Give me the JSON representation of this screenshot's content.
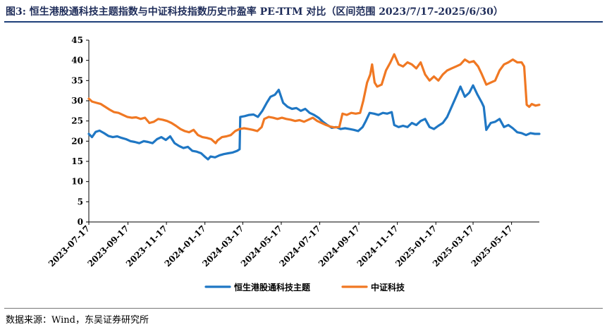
{
  "figure": {
    "title": "图3:  恒生港股通科技主题指数与中证科技指数历史市盈率 PE-TTM 对比（区间范围 2023/7/17-2025/6/30）",
    "source": "数据来源：Wind，东吴证券研究所"
  },
  "chart_data": {
    "type": "line",
    "title": "",
    "xlabel": "",
    "ylabel": "",
    "ylim": [
      0,
      45
    ],
    "yticks": [
      "0",
      "5",
      "10",
      "15",
      "20",
      "25",
      "30",
      "35",
      "40",
      "45"
    ],
    "xlim": [
      "2023-07-17",
      "2025-06-30"
    ],
    "xticks": [
      "2023-07-17",
      "2023-09-17",
      "2023-11-17",
      "2024-01-17",
      "2024-03-17",
      "2024-05-17",
      "2024-07-17",
      "2024-09-17",
      "2024-11-17",
      "2025-01-17",
      "2025-03-17",
      "2025-05-17"
    ],
    "grid": false,
    "legend_position": "bottom",
    "series": [
      {
        "name": "恒生港股通科技主题",
        "color": "#1f77c4",
        "points": [
          [
            "2023-07-17",
            21.8
          ],
          [
            "2023-07-22",
            21.0
          ],
          [
            "2023-07-28",
            22.3
          ],
          [
            "2023-08-03",
            22.6
          ],
          [
            "2023-08-10",
            22.0
          ],
          [
            "2023-08-17",
            21.3
          ],
          [
            "2023-08-24",
            21.0
          ],
          [
            "2023-08-31",
            21.2
          ],
          [
            "2023-09-07",
            20.8
          ],
          [
            "2023-09-14",
            20.5
          ],
          [
            "2023-09-21",
            20.0
          ],
          [
            "2023-09-28",
            19.8
          ],
          [
            "2023-10-05",
            19.5
          ],
          [
            "2023-10-12",
            20.0
          ],
          [
            "2023-10-19",
            19.8
          ],
          [
            "2023-10-26",
            19.5
          ],
          [
            "2023-11-02",
            20.5
          ],
          [
            "2023-11-09",
            21.0
          ],
          [
            "2023-11-16",
            20.3
          ],
          [
            "2023-11-23",
            21.2
          ],
          [
            "2023-11-30",
            19.5
          ],
          [
            "2023-12-07",
            18.8
          ],
          [
            "2023-12-14",
            18.3
          ],
          [
            "2023-12-21",
            18.6
          ],
          [
            "2023-12-28",
            17.6
          ],
          [
            "2024-01-04",
            17.4
          ],
          [
            "2024-01-11",
            17.0
          ],
          [
            "2024-01-18",
            16.0
          ],
          [
            "2024-01-22",
            15.5
          ],
          [
            "2024-01-26",
            16.2
          ],
          [
            "2024-02-02",
            16.0
          ],
          [
            "2024-02-09",
            16.5
          ],
          [
            "2024-02-16",
            16.8
          ],
          [
            "2024-02-23",
            17.0
          ],
          [
            "2024-03-01",
            17.2
          ],
          [
            "2024-03-08",
            17.6
          ],
          [
            "2024-03-12",
            18.0
          ],
          [
            "2024-03-13",
            26.0
          ],
          [
            "2024-03-20",
            26.2
          ],
          [
            "2024-03-27",
            26.5
          ],
          [
            "2024-04-03",
            26.6
          ],
          [
            "2024-04-10",
            26.0
          ],
          [
            "2024-04-17",
            27.5
          ],
          [
            "2024-04-24",
            29.5
          ],
          [
            "2024-04-30",
            31.0
          ],
          [
            "2024-05-07",
            31.5
          ],
          [
            "2024-05-13",
            32.7
          ],
          [
            "2024-05-20",
            29.5
          ],
          [
            "2024-05-27",
            28.5
          ],
          [
            "2024-06-03",
            28.0
          ],
          [
            "2024-06-10",
            28.2
          ],
          [
            "2024-06-17",
            27.5
          ],
          [
            "2024-06-24",
            28.0
          ],
          [
            "2024-07-01",
            27.0
          ],
          [
            "2024-07-08",
            26.5
          ],
          [
            "2024-07-15",
            25.8
          ],
          [
            "2024-07-22",
            24.8
          ],
          [
            "2024-07-29",
            24.0
          ],
          [
            "2024-08-05",
            23.3
          ],
          [
            "2024-08-12",
            23.5
          ],
          [
            "2024-08-19",
            23.0
          ],
          [
            "2024-08-26",
            23.2
          ],
          [
            "2024-09-02",
            23.0
          ],
          [
            "2024-09-09",
            22.8
          ],
          [
            "2024-09-16",
            22.5
          ],
          [
            "2024-09-23",
            23.5
          ],
          [
            "2024-09-28",
            25.0
          ],
          [
            "2024-10-04",
            27.0
          ],
          [
            "2024-10-11",
            26.8
          ],
          [
            "2024-10-18",
            26.5
          ],
          [
            "2024-10-25",
            27.0
          ],
          [
            "2024-11-01",
            26.8
          ],
          [
            "2024-11-08",
            27.2
          ],
          [
            "2024-11-12",
            24.0
          ],
          [
            "2024-11-19",
            23.5
          ],
          [
            "2024-11-26",
            23.8
          ],
          [
            "2024-12-03",
            23.5
          ],
          [
            "2024-12-10",
            24.5
          ],
          [
            "2024-12-17",
            24.0
          ],
          [
            "2024-12-24",
            25.0
          ],
          [
            "2024-12-31",
            25.5
          ],
          [
            "2025-01-07",
            23.5
          ],
          [
            "2025-01-14",
            23.0
          ],
          [
            "2025-01-21",
            23.8
          ],
          [
            "2025-01-28",
            24.5
          ],
          [
            "2025-02-04",
            26.0
          ],
          [
            "2025-02-11",
            28.5
          ],
          [
            "2025-02-18",
            31.0
          ],
          [
            "2025-02-25",
            33.5
          ],
          [
            "2025-03-04",
            31.0
          ],
          [
            "2025-03-11",
            32.0
          ],
          [
            "2025-03-17",
            33.8
          ],
          [
            "2025-03-24",
            31.5
          ],
          [
            "2025-03-31",
            29.5
          ],
          [
            "2025-04-03",
            28.5
          ],
          [
            "2025-04-07",
            22.8
          ],
          [
            "2025-04-14",
            24.5
          ],
          [
            "2025-04-21",
            24.8
          ],
          [
            "2025-04-28",
            25.5
          ],
          [
            "2025-05-05",
            23.5
          ],
          [
            "2025-05-12",
            24.0
          ],
          [
            "2025-05-19",
            23.2
          ],
          [
            "2025-05-26",
            22.2
          ],
          [
            "2025-06-02",
            22.0
          ],
          [
            "2025-06-09",
            21.5
          ],
          [
            "2025-06-16",
            22.0
          ],
          [
            "2025-06-23",
            21.8
          ],
          [
            "2025-06-30",
            21.8
          ]
        ]
      },
      {
        "name": "中证科技",
        "color": "#f07823",
        "points": [
          [
            "2023-07-17",
            30.5
          ],
          [
            "2023-07-22",
            29.8
          ],
          [
            "2023-07-29",
            29.5
          ],
          [
            "2023-08-05",
            29.2
          ],
          [
            "2023-08-12",
            28.5
          ],
          [
            "2023-08-19",
            27.8
          ],
          [
            "2023-08-26",
            27.2
          ],
          [
            "2023-09-02",
            27.0
          ],
          [
            "2023-09-09",
            26.5
          ],
          [
            "2023-09-16",
            26.0
          ],
          [
            "2023-09-23",
            25.8
          ],
          [
            "2023-09-30",
            25.9
          ],
          [
            "2023-10-07",
            25.5
          ],
          [
            "2023-10-14",
            25.8
          ],
          [
            "2023-10-21",
            24.5
          ],
          [
            "2023-10-28",
            24.8
          ],
          [
            "2023-11-04",
            25.5
          ],
          [
            "2023-11-11",
            25.3
          ],
          [
            "2023-11-18",
            25.0
          ],
          [
            "2023-11-25",
            24.5
          ],
          [
            "2023-12-02",
            23.8
          ],
          [
            "2023-12-09",
            23.0
          ],
          [
            "2023-12-16",
            22.5
          ],
          [
            "2023-12-23",
            22.2
          ],
          [
            "2023-12-30",
            22.8
          ],
          [
            "2024-01-06",
            21.5
          ],
          [
            "2024-01-13",
            21.0
          ],
          [
            "2024-01-20",
            20.8
          ],
          [
            "2024-01-27",
            20.5
          ],
          [
            "2024-02-03",
            19.5
          ],
          [
            "2024-02-06",
            20.2
          ],
          [
            "2024-02-13",
            21.0
          ],
          [
            "2024-02-20",
            21.2
          ],
          [
            "2024-02-27",
            21.5
          ],
          [
            "2024-03-05",
            22.5
          ],
          [
            "2024-03-12",
            23.0
          ],
          [
            "2024-03-19",
            23.2
          ],
          [
            "2024-03-26",
            23.0
          ],
          [
            "2024-04-02",
            22.8
          ],
          [
            "2024-04-09",
            22.5
          ],
          [
            "2024-04-16",
            23.5
          ],
          [
            "2024-04-20",
            25.5
          ],
          [
            "2024-04-27",
            26.0
          ],
          [
            "2024-05-04",
            25.8
          ],
          [
            "2024-05-11",
            25.5
          ],
          [
            "2024-05-18",
            25.8
          ],
          [
            "2024-05-25",
            25.5
          ],
          [
            "2024-06-01",
            25.3
          ],
          [
            "2024-06-08",
            25.0
          ],
          [
            "2024-06-15",
            25.2
          ],
          [
            "2024-06-22",
            24.8
          ],
          [
            "2024-06-29",
            25.3
          ],
          [
            "2024-07-06",
            25.8
          ],
          [
            "2024-07-13",
            25.0
          ],
          [
            "2024-07-20",
            24.5
          ],
          [
            "2024-07-27",
            24.0
          ],
          [
            "2024-08-03",
            23.6
          ],
          [
            "2024-08-10",
            23.4
          ],
          [
            "2024-08-17",
            23.5
          ],
          [
            "2024-08-22",
            26.8
          ],
          [
            "2024-08-29",
            26.5
          ],
          [
            "2024-09-05",
            27.0
          ],
          [
            "2024-09-12",
            26.8
          ],
          [
            "2024-09-19",
            27.0
          ],
          [
            "2024-09-24",
            30.0
          ],
          [
            "2024-09-30",
            34.5
          ],
          [
            "2024-10-05",
            36.5
          ],
          [
            "2024-10-08",
            39.0
          ],
          [
            "2024-10-12",
            34.5
          ],
          [
            "2024-10-16",
            33.5
          ],
          [
            "2024-10-23",
            34.0
          ],
          [
            "2024-10-30",
            37.5
          ],
          [
            "2024-11-06",
            39.5
          ],
          [
            "2024-11-12",
            41.5
          ],
          [
            "2024-11-19",
            39.0
          ],
          [
            "2024-11-26",
            38.5
          ],
          [
            "2024-12-03",
            39.5
          ],
          [
            "2024-12-10",
            39.0
          ],
          [
            "2024-12-17",
            38.0
          ],
          [
            "2024-12-24",
            39.5
          ],
          [
            "2024-12-31",
            36.5
          ],
          [
            "2025-01-07",
            35.0
          ],
          [
            "2025-01-14",
            36.0
          ],
          [
            "2025-01-21",
            35.0
          ],
          [
            "2025-01-28",
            36.5
          ],
          [
            "2025-02-04",
            37.5
          ],
          [
            "2025-02-11",
            38.0
          ],
          [
            "2025-02-18",
            38.5
          ],
          [
            "2025-02-25",
            39.0
          ],
          [
            "2025-03-04",
            40.2
          ],
          [
            "2025-03-11",
            39.5
          ],
          [
            "2025-03-18",
            39.8
          ],
          [
            "2025-03-25",
            38.5
          ],
          [
            "2025-03-31",
            36.5
          ],
          [
            "2025-04-07",
            34.0
          ],
          [
            "2025-04-14",
            34.5
          ],
          [
            "2025-04-21",
            35.0
          ],
          [
            "2025-04-28",
            37.5
          ],
          [
            "2025-05-05",
            39.0
          ],
          [
            "2025-05-12",
            39.5
          ],
          [
            "2025-05-19",
            40.2
          ],
          [
            "2025-05-26",
            39.5
          ],
          [
            "2025-06-02",
            39.5
          ],
          [
            "2025-06-06",
            38.5
          ],
          [
            "2025-06-10",
            29.0
          ],
          [
            "2025-06-14",
            28.5
          ],
          [
            "2025-06-18",
            29.2
          ],
          [
            "2025-06-24",
            28.8
          ],
          [
            "2025-06-30",
            29.0
          ]
        ]
      }
    ]
  }
}
